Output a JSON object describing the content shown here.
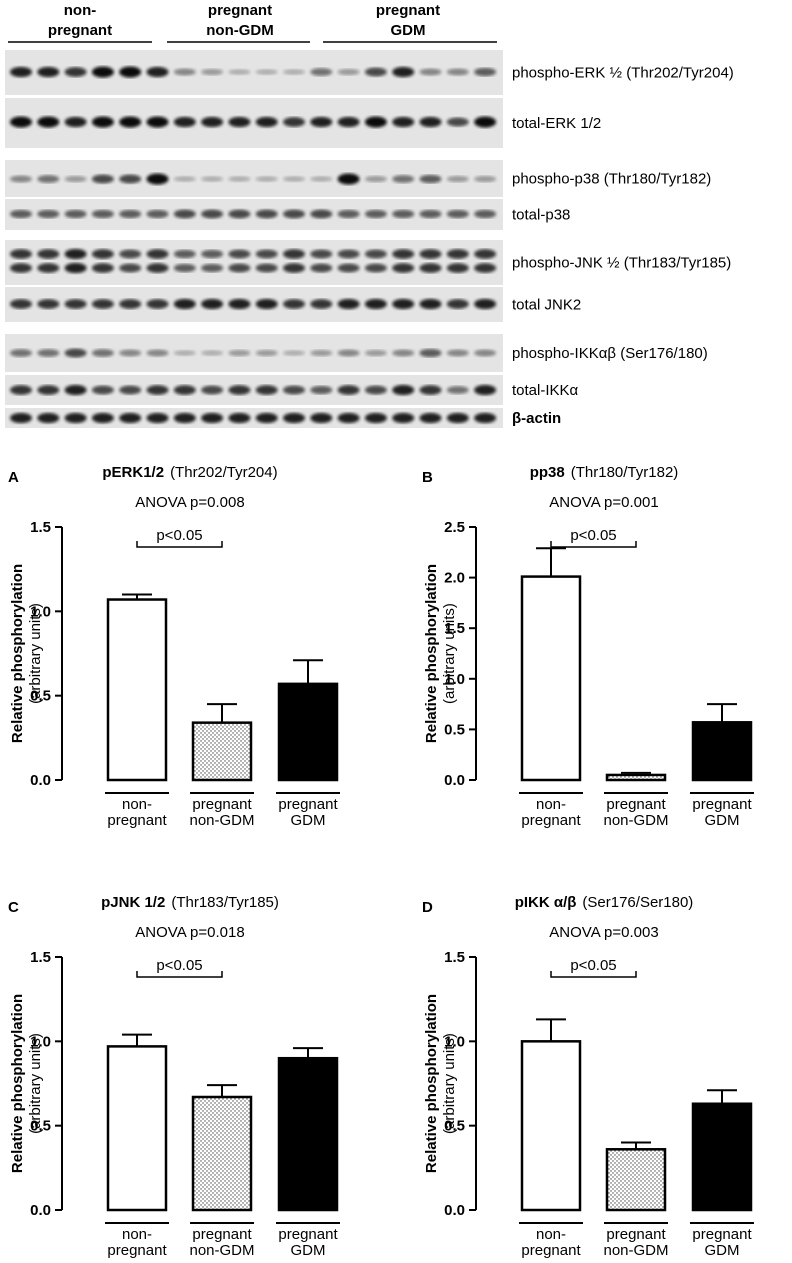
{
  "blot": {
    "groups": [
      [
        "non-",
        "pregnant"
      ],
      [
        "pregnant",
        "non-GDM"
      ],
      [
        "pregnant",
        "GDM"
      ]
    ],
    "labels": [
      "phospho-ERK ½ (Thr202/Tyr204)",
      "total-ERK 1/2",
      "phospho-p38 (Thr180/Tyr182)",
      "total-p38",
      "phospho-JNK ½ (Thr183/Tyr185)",
      "total JNK2",
      "phospho-IKKαβ (Ser176/180)",
      "total-IKKα",
      "β-actin"
    ]
  },
  "chart_data": [
    {
      "type": "bar",
      "panel": "A",
      "title": "pERK1/2",
      "title_detail": "(Thr202/Tyr204)",
      "subtitle": "ANOVA p=0.008",
      "ylabel": "Relative phosphorylation",
      "ylabel_sub": "(arbitrary units)",
      "annotation": "p<0.05",
      "categories": [
        [
          "non-",
          "pregnant"
        ],
        [
          "pregnant",
          "non-GDM"
        ],
        [
          "pregnant",
          "GDM"
        ]
      ],
      "values": [
        1.07,
        0.34,
        0.57
      ],
      "errors": [
        0.03,
        0.11,
        0.14
      ],
      "colors": [
        "#ffffff",
        "stipple",
        "#000000"
      ],
      "ylim": [
        0,
        1.5
      ],
      "yticks": [
        {
          "value": 0,
          "label": "0.0"
        },
        {
          "value": 0.5,
          "label": "0.5"
        },
        {
          "value": 1,
          "label": "1.0"
        },
        {
          "value": 1.5,
          "label": "1.5"
        }
      ]
    },
    {
      "type": "bar",
      "panel": "B",
      "title": "pp38",
      "title_detail": "(Thr180/Tyr182)",
      "subtitle": "ANOVA p=0.001",
      "ylabel": "Relative phosphorylation",
      "ylabel_sub": "(arbitrary units)",
      "annotation": "p<0.05",
      "categories": [
        [
          "non-",
          "pregnant"
        ],
        [
          "pregnant",
          "non-GDM"
        ],
        [
          "pregnant",
          "GDM"
        ]
      ],
      "values": [
        2.01,
        0.05,
        0.57
      ],
      "errors": [
        0.28,
        0.02,
        0.18
      ],
      "colors": [
        "#ffffff",
        "stipple",
        "#000000"
      ],
      "ylim": [
        0,
        2.5
      ],
      "yticks": [
        {
          "value": 0,
          "label": "0.0"
        },
        0.5,
        {
          "value": 1,
          "label": "1.0"
        },
        1.5,
        {
          "value": 2,
          "label": "2.0"
        },
        2.5
      ]
    },
    {
      "type": "bar",
      "panel": "C",
      "title": "pJNK 1/2",
      "title_detail": "(Thr183/Tyr185)",
      "subtitle": "ANOVA p=0.018",
      "ylabel": "Relative phosphorylation",
      "ylabel_sub": "(arbitrary units)",
      "annotation": "p<0.05",
      "categories": [
        [
          "non-",
          "pregnant"
        ],
        [
          "pregnant",
          "non-GDM"
        ],
        [
          "pregnant",
          "GDM"
        ]
      ],
      "values": [
        0.97,
        0.67,
        0.9
      ],
      "errors": [
        0.07,
        0.07,
        0.06
      ],
      "colors": [
        "#ffffff",
        "stipple",
        "#000000"
      ],
      "ylim": [
        0,
        1.5
      ],
      "yticks": [
        {
          "value": 0,
          "label": "0.0"
        },
        {
          "value": 0.5,
          "label": "0.5"
        },
        {
          "value": 1,
          "label": "1.0"
        },
        {
          "value": 1.5,
          "label": "1.5"
        }
      ]
    },
    {
      "type": "bar",
      "panel": "D",
      "title": "pIKK α/β",
      "title_detail": "(Ser176/Ser180)",
      "subtitle": "ANOVA p=0.003",
      "ylabel": "Relative phosphorylation",
      "ylabel_sub": "(arbitrary units)",
      "annotation": "p<0.05",
      "categories": [
        [
          "non-",
          "pregnant"
        ],
        [
          "pregnant",
          "non-GDM"
        ],
        [
          "pregnant",
          "GDM"
        ]
      ],
      "values": [
        1.0,
        0.36,
        0.63
      ],
      "errors": [
        0.13,
        0.04,
        0.08
      ],
      "colors": [
        "#ffffff",
        "stipple",
        "#000000"
      ],
      "ylim": [
        0,
        1.5
      ],
      "yticks": [
        {
          "value": 0,
          "label": "0.0"
        },
        {
          "value": 0.5,
          "label": "0.5"
        },
        {
          "value": 1,
          "label": "1.0"
        },
        {
          "value": 1.5,
          "label": "1.5"
        }
      ]
    }
  ]
}
